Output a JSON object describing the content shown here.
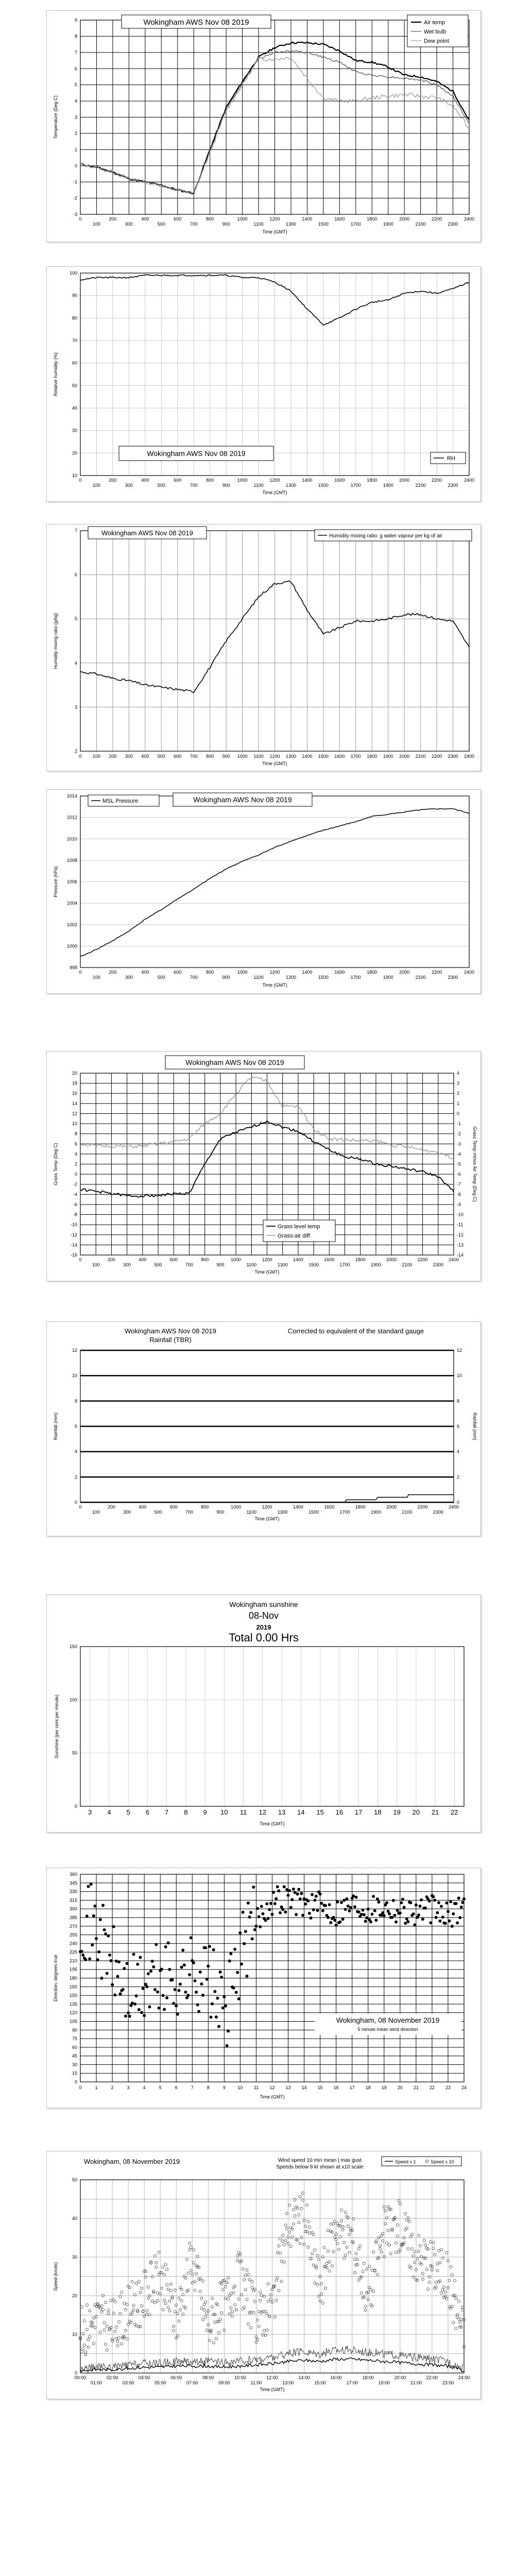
{
  "charts": {
    "temp": {
      "title": "Wokingham AWS Nov 08 2019",
      "xlabel": "Time (GMT)",
      "ylabel": "Temperature (Deg C)",
      "ylim": [
        -3,
        9
      ],
      "xticks_top": [
        "0",
        "200",
        "400",
        "600",
        "800",
        "1000",
        "1200",
        "1400",
        "1600",
        "1800",
        "2000",
        "2200",
        "2400"
      ],
      "xticks_bottom": [
        "100",
        "300",
        "500",
        "700",
        "900",
        "1100",
        "1300",
        "1500",
        "1700",
        "1900",
        "2100",
        "2300"
      ],
      "legend": [
        "Air temp",
        "Wet bulb",
        "Dew point"
      ]
    },
    "rh": {
      "title": "Wokingham AWS Nov 08 2019",
      "xlabel": "Time (GMT)",
      "ylabel": "Relative humidity (%)",
      "ylim": [
        10,
        100
      ],
      "xticks_top": [
        "0",
        "200",
        "400",
        "600",
        "800",
        "1000",
        "1200",
        "1400",
        "1600",
        "1800",
        "2000",
        "2200",
        "2400"
      ],
      "xticks_bottom": [
        "100",
        "300",
        "500",
        "700",
        "900",
        "1100",
        "1300",
        "1500",
        "1700",
        "1900",
        "2100",
        "2300"
      ],
      "legend": [
        "RH"
      ]
    },
    "mix": {
      "title": "Wokingham AWS Nov 08 2019",
      "xlabel": "Time (GMT)",
      "ylabel": "Humidity mixing ratio (g/kg)",
      "ylim": [
        2,
        7
      ],
      "xticks": [
        "0",
        "100",
        "200",
        "300",
        "400",
        "500",
        "600",
        "700",
        "800",
        "900",
        "1000",
        "1100",
        "1200",
        "1300",
        "1400",
        "1500",
        "1600",
        "1700",
        "1800",
        "1900",
        "2000",
        "2100",
        "2200",
        "2300",
        "2400"
      ],
      "legend": [
        "Humidity mixing ratio: g water vapour per kg of air"
      ]
    },
    "pres": {
      "title": "Wokingham AWS Nov 08 2019",
      "xlabel": "Time (GMT)",
      "ylabel": "Pressure (hPa)",
      "ylim": [
        998,
        1014
      ],
      "xticks_top": [
        "0",
        "200",
        "400",
        "600",
        "800",
        "1000",
        "1200",
        "1400",
        "1600",
        "1800",
        "2000",
        "2200",
        "2400"
      ],
      "xticks_bottom": [
        "100",
        "300",
        "500",
        "700",
        "900",
        "1100",
        "1300",
        "1500",
        "1700",
        "1900",
        "2100",
        "2300"
      ],
      "legend": [
        "MSL Pressure"
      ]
    },
    "grass": {
      "title": "Wokingham AWS Nov 08 2019",
      "xlabel": "Time (GMT)",
      "ylabel": "Grass Temp (Deg C)",
      "ylabel_right": "Grass Temp minus Air Temp (Deg C)",
      "ylim": [
        -16,
        20
      ],
      "ylim_right": [
        -14,
        4
      ],
      "xticks_top": [
        "0",
        "200",
        "400",
        "600",
        "800",
        "1000",
        "1200",
        "1400",
        "1600",
        "1800",
        "2000",
        "2200",
        "2400"
      ],
      "xticks_bottom": [
        "100",
        "300",
        "500",
        "700",
        "900",
        "1100",
        "1300",
        "1500",
        "1700",
        "1900",
        "2100",
        "2300"
      ],
      "legend": [
        "Grass level temp",
        "Grass-air diff"
      ]
    },
    "rain": {
      "title": "Wokingham AWS Nov 08 2019",
      "subtitle": "Rainfall (TBR)",
      "note": "Corrected to equivalent of the standard gauge",
      "xlabel": "Time (GMT)",
      "ylabel": "Rainfall (mm)",
      "ylim": [
        0,
        12
      ],
      "xticks_top": [
        "0",
        "200",
        "400",
        "600",
        "800",
        "1000",
        "1200",
        "1400",
        "1600",
        "1800",
        "2000",
        "2200",
        "2400"
      ],
      "xticks_bottom": [
        "100",
        "300",
        "500",
        "700",
        "900",
        "1100",
        "1300",
        "1500",
        "1700",
        "1900",
        "2100",
        "2300"
      ]
    },
    "sun": {
      "title": "Wokingham sunshine",
      "date": "08-Nov",
      "year": "2019",
      "total": "Total 0.00 Hrs",
      "xlabel": "Time (GMT)",
      "ylabel": "Sunshine (per cent per minute)",
      "ylim": [
        0,
        150
      ],
      "xticks": [
        "3",
        "4",
        "5",
        "6",
        "7",
        "8",
        "9",
        "10",
        "11",
        "12",
        "13",
        "14",
        "15",
        "16",
        "17",
        "18",
        "19",
        "20",
        "21",
        "22"
      ]
    },
    "dir": {
      "title": "Wokingham,  08 November 2019",
      "subtitle": "5 minute mean wind direction",
      "xlabel": "Time (GMT)",
      "ylabel": "Direction, degrees true",
      "ylim": [
        0,
        360
      ],
      "xticks": [
        "0",
        "1",
        "2",
        "3",
        "4",
        "5",
        "6",
        "7",
        "8",
        "9",
        "10",
        "11",
        "12",
        "13",
        "14",
        "15",
        "16",
        "17",
        "18",
        "19",
        "20",
        "21",
        "22",
        "23",
        "24"
      ]
    },
    "wind": {
      "title": "Wokingham,  08 November 2019",
      "header1": "Wind speed 10 min mean | max gust",
      "header2": "Speeds below 8 kt shown at x10 scale",
      "xlabel": "Time (GMT)",
      "ylabel": "Speed (knots)",
      "ylim": [
        0,
        50
      ],
      "xticks_top": [
        "00:00",
        "02:00",
        "04:00",
        "06:00",
        "08:00",
        "10:00",
        "12:00",
        "14:00",
        "16:00",
        "18:00",
        "20:00",
        "22:00",
        "24:00"
      ],
      "xticks_bottom": [
        "01:00",
        "03:00",
        "05:00",
        "07:00",
        "09:00",
        "11:00",
        "13:00",
        "15:00",
        "17:00",
        "19:00",
        "21:00",
        "23:00"
      ],
      "legend": [
        "Speed x 1",
        "Speed x 10"
      ]
    }
  },
  "chart_data": [
    {
      "type": "line",
      "name": "temperature",
      "x": [
        0,
        100,
        200,
        300,
        400,
        500,
        600,
        700,
        800,
        900,
        1000,
        1100,
        1200,
        1300,
        1400,
        1500,
        1600,
        1700,
        1800,
        1900,
        2000,
        2100,
        2200,
        2300,
        2400
      ],
      "series": [
        {
          "name": "Air temp",
          "values": [
            0.1,
            -0.1,
            -0.4,
            -0.8,
            -1.0,
            -1.2,
            -1.5,
            -1.7,
            1.0,
            3.6,
            5.2,
            6.7,
            7.3,
            7.6,
            7.6,
            7.5,
            7.1,
            6.5,
            6.4,
            6.1,
            5.6,
            5.5,
            5.2,
            4.6,
            2.8
          ]
        },
        {
          "name": "Wet bulb",
          "values": [
            0.1,
            -0.1,
            -0.4,
            -0.8,
            -1.0,
            -1.2,
            -1.5,
            -1.7,
            0.9,
            3.5,
            5.1,
            6.6,
            7.0,
            7.1,
            7.0,
            6.7,
            6.4,
            5.8,
            5.6,
            5.5,
            5.4,
            5.3,
            5.0,
            4.3,
            2.6
          ]
        },
        {
          "name": "Dew point",
          "values": [
            0.1,
            -0.1,
            -0.4,
            -0.8,
            -1.0,
            -1.2,
            -1.5,
            -1.7,
            0.8,
            3.4,
            5.0,
            6.6,
            6.6,
            6.7,
            5.4,
            4.2,
            4.0,
            4.0,
            4.2,
            4.3,
            4.4,
            4.3,
            4.2,
            3.7,
            2.3
          ]
        }
      ]
    },
    {
      "type": "line",
      "name": "relative humidity",
      "x": [
        0,
        100,
        200,
        300,
        400,
        500,
        600,
        700,
        800,
        900,
        1000,
        1100,
        1200,
        1300,
        1400,
        1500,
        1600,
        1700,
        1800,
        1900,
        2000,
        2100,
        2200,
        2300,
        2400
      ],
      "series": [
        {
          "name": "RH",
          "values": [
            97,
            98,
            98,
            98,
            99,
            99,
            99,
            99,
            99,
            99,
            98,
            98,
            96,
            92,
            84,
            77,
            80,
            84,
            87,
            88,
            91,
            92,
            91,
            93,
            96
          ]
        }
      ]
    },
    {
      "type": "line",
      "name": "mixing ratio",
      "x": [
        0,
        100,
        200,
        300,
        400,
        500,
        600,
        700,
        800,
        900,
        1000,
        1100,
        1200,
        1300,
        1400,
        1500,
        1600,
        1700,
        1800,
        1900,
        2000,
        2100,
        2200,
        2300,
        2400
      ],
      "series": [
        {
          "name": "Humidity mixing ratio",
          "values": [
            3.8,
            3.75,
            3.65,
            3.6,
            3.5,
            3.45,
            3.4,
            3.35,
            3.9,
            4.5,
            5.0,
            5.5,
            5.8,
            5.85,
            5.2,
            4.65,
            4.8,
            4.95,
            4.95,
            5.0,
            5.1,
            5.1,
            5.0,
            4.95,
            4.35
          ]
        }
      ]
    },
    {
      "type": "line",
      "name": "pressure",
      "x": [
        0,
        100,
        200,
        300,
        400,
        500,
        600,
        700,
        800,
        900,
        1000,
        1100,
        1200,
        1300,
        1400,
        1500,
        1600,
        1700,
        1800,
        1900,
        2000,
        2100,
        2200,
        2300,
        2400
      ],
      "series": [
        {
          "name": "MSL Pressure",
          "values": [
            999.0,
            999.7,
            1000.5,
            1001.4,
            1002.5,
            1003.4,
            1004.4,
            1005.3,
            1006.3,
            1007.2,
            1007.9,
            1008.5,
            1009.2,
            1009.8,
            1010.3,
            1010.8,
            1011.2,
            1011.6,
            1012.1,
            1012.3,
            1012.5,
            1012.7,
            1012.8,
            1012.8,
            1012.4
          ]
        }
      ]
    },
    {
      "type": "line",
      "name": "grass temperature",
      "x": [
        0,
        100,
        200,
        300,
        400,
        500,
        600,
        700,
        800,
        900,
        1000,
        1100,
        1200,
        1300,
        1400,
        1500,
        1600,
        1700,
        1800,
        1900,
        2000,
        2100,
        2200,
        2300,
        2400
      ],
      "series": [
        {
          "name": "Grass level temp",
          "axis": "left",
          "values": [
            -3.0,
            -3.4,
            -3.8,
            -4.3,
            -4.3,
            -4.2,
            -3.9,
            -3.8,
            2.0,
            7.0,
            8.3,
            9.3,
            10.5,
            9.3,
            8.5,
            6.5,
            4.8,
            3.4,
            3.0,
            2.0,
            1.6,
            1.0,
            0.5,
            -0.5,
            -3.5
          ]
        },
        {
          "name": "Grass-air diff",
          "axis": "right",
          "values": [
            -3.0,
            -3.2,
            -3.2,
            -3.3,
            -3.2,
            -3.0,
            -2.8,
            -2.5,
            -1.0,
            0.0,
            2.0,
            3.6,
            3.2,
            0.7,
            0.7,
            -1.5,
            -2.5,
            -2.6,
            -2.7,
            -2.7,
            -3.1,
            -3.3,
            -3.6,
            -3.8,
            -4.4
          ]
        }
      ]
    },
    {
      "type": "line",
      "name": "rainfall",
      "x": [
        0,
        1700,
        1710,
        1900,
        1910,
        2100,
        2110,
        2400
      ],
      "series": [
        {
          "name": "Rainfall (TBR)",
          "values": [
            0,
            0,
            0.2,
            0.2,
            0.4,
            0.4,
            0.6,
            0.6
          ]
        }
      ]
    },
    {
      "type": "bar",
      "name": "sunshine",
      "categories": [
        "3",
        "4",
        "5",
        "6",
        "7",
        "8",
        "9",
        "10",
        "11",
        "12",
        "13",
        "14",
        "15",
        "16",
        "17",
        "18",
        "19",
        "20",
        "21",
        "22"
      ],
      "values": [
        0,
        0,
        0,
        0,
        0,
        0,
        0,
        0,
        0,
        0,
        0,
        0,
        0,
        0,
        0,
        0,
        0,
        0,
        0,
        0
      ]
    },
    {
      "type": "scatter",
      "name": "wind direction",
      "x": [
        0,
        1,
        2,
        3,
        4,
        5,
        6,
        7,
        8,
        9,
        10,
        11,
        12,
        13,
        14,
        15,
        16,
        17,
        18,
        19,
        20,
        21,
        22,
        23,
        24
      ],
      "series": [
        {
          "name": "5 minute mean wind direction",
          "values": [
            290,
            265,
            205,
            150,
            160,
            180,
            175,
            190,
            185,
            110,
            220,
            280,
            315,
            320,
            310,
            305,
            295,
            310,
            300,
            305,
            300,
            295,
            300,
            285,
            310
          ]
        }
      ]
    },
    {
      "type": "line",
      "name": "wind speed",
      "x": [
        0,
        1,
        2,
        3,
        4,
        5,
        6,
        7,
        8,
        9,
        10,
        11,
        12,
        13,
        14,
        15,
        16,
        17,
        18,
        19,
        20,
        21,
        22,
        23,
        24
      ],
      "series": [
        {
          "name": "Speed x 1",
          "values": [
            1,
            1.5,
            1.5,
            2,
            2.5,
            2.5,
            3,
            3,
            3,
            2.5,
            3,
            3.5,
            4,
            5,
            5.5,
            5,
            6,
            6,
            5.5,
            5,
            4.5,
            4,
            3.5,
            3,
            1
          ]
        },
        {
          "name": "Speed x 10",
          "values": [
            10,
            14,
            12,
            16,
            20,
            25,
            14,
            30,
            12,
            18,
            25,
            14,
            18,
            38,
            40,
            22,
            38,
            35,
            20,
            36,
            38,
            30,
            28,
            24,
            10
          ]
        }
      ]
    }
  ]
}
